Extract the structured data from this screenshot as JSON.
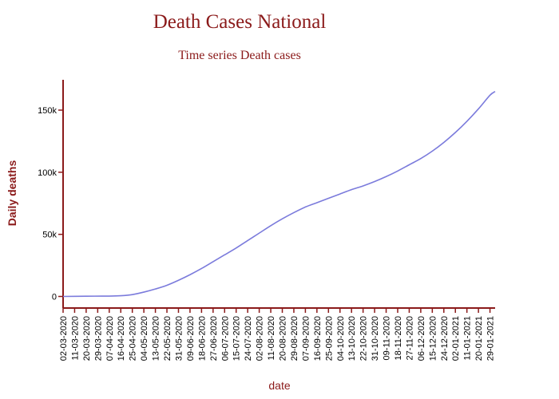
{
  "chart_data": {
    "type": "line",
    "title": "Death Cases National",
    "subtitle": "Time series Death cases",
    "xlabel": "date",
    "ylabel": "Daily deaths",
    "ylim": [
      0,
      170000
    ],
    "yticks": [
      {
        "value": 0,
        "label": "0"
      },
      {
        "value": 50000,
        "label": "50k"
      },
      {
        "value": 100000,
        "label": "100k"
      },
      {
        "value": 150000,
        "label": "150k"
      }
    ],
    "xlim": [
      "2020-03-02",
      "2021-02-02"
    ],
    "xticks": [
      {
        "date": "2020-03-02",
        "label": "02-03-2020"
      },
      {
        "date": "2020-03-11",
        "label": "11-03-2020"
      },
      {
        "date": "2020-03-20",
        "label": "20-03-2020"
      },
      {
        "date": "2020-03-29",
        "label": "29-03-2020"
      },
      {
        "date": "2020-04-07",
        "label": "07-04-2020"
      },
      {
        "date": "2020-04-16",
        "label": "16-04-2020"
      },
      {
        "date": "2020-04-25",
        "label": "25-04-2020"
      },
      {
        "date": "2020-05-04",
        "label": "04-05-2020"
      },
      {
        "date": "2020-05-13",
        "label": "13-05-2020"
      },
      {
        "date": "2020-05-22",
        "label": "22-05-2020"
      },
      {
        "date": "2020-05-31",
        "label": "31-05-2020"
      },
      {
        "date": "2020-06-09",
        "label": "09-06-2020"
      },
      {
        "date": "2020-06-18",
        "label": "18-06-2020"
      },
      {
        "date": "2020-06-27",
        "label": "27-06-2020"
      },
      {
        "date": "2020-07-06",
        "label": "06-07-2020"
      },
      {
        "date": "2020-07-15",
        "label": "15-07-2020"
      },
      {
        "date": "2020-07-24",
        "label": "24-07-2020"
      },
      {
        "date": "2020-08-02",
        "label": "02-08-2020"
      },
      {
        "date": "2020-08-11",
        "label": "11-08-2020"
      },
      {
        "date": "2020-08-20",
        "label": "20-08-2020"
      },
      {
        "date": "2020-08-29",
        "label": "29-08-2020"
      },
      {
        "date": "2020-09-07",
        "label": "07-09-2020"
      },
      {
        "date": "2020-09-16",
        "label": "16-09-2020"
      },
      {
        "date": "2020-09-25",
        "label": "25-09-2020"
      },
      {
        "date": "2020-10-04",
        "label": "04-10-2020"
      },
      {
        "date": "2020-10-13",
        "label": "13-10-2020"
      },
      {
        "date": "2020-10-22",
        "label": "22-10-2020"
      },
      {
        "date": "2020-10-31",
        "label": "31-10-2020"
      },
      {
        "date": "2020-11-09",
        "label": "09-11-2020"
      },
      {
        "date": "2020-11-18",
        "label": "18-11-2020"
      },
      {
        "date": "2020-11-27",
        "label": "27-11-2020"
      },
      {
        "date": "2020-12-06",
        "label": "06-12-2020"
      },
      {
        "date": "2020-12-15",
        "label": "15-12-2020"
      },
      {
        "date": "2020-12-24",
        "label": "24-12-2020"
      },
      {
        "date": "2021-01-02",
        "label": "02-01-2021"
      },
      {
        "date": "2021-01-11",
        "label": "11-01-2021"
      },
      {
        "date": "2021-01-20",
        "label": "20-01-2021"
      },
      {
        "date": "2021-01-29",
        "label": "29-01-2021"
      }
    ],
    "series": [
      {
        "color": "#7b7bdc",
        "points": [
          {
            "x": "2020-03-02",
            "y": 0
          },
          {
            "x": "2020-03-20",
            "y": 200
          },
          {
            "x": "2020-04-07",
            "y": 300
          },
          {
            "x": "2020-04-16",
            "y": 600
          },
          {
            "x": "2020-04-25",
            "y": 1500
          },
          {
            "x": "2020-05-04",
            "y": 3500
          },
          {
            "x": "2020-05-13",
            "y": 6000
          },
          {
            "x": "2020-05-22",
            "y": 9000
          },
          {
            "x": "2020-05-31",
            "y": 13000
          },
          {
            "x": "2020-06-09",
            "y": 17500
          },
          {
            "x": "2020-06-18",
            "y": 22500
          },
          {
            "x": "2020-06-27",
            "y": 28000
          },
          {
            "x": "2020-07-06",
            "y": 33500
          },
          {
            "x": "2020-07-15",
            "y": 39000
          },
          {
            "x": "2020-07-24",
            "y": 45000
          },
          {
            "x": "2020-08-02",
            "y": 51000
          },
          {
            "x": "2020-08-11",
            "y": 57000
          },
          {
            "x": "2020-08-20",
            "y": 62500
          },
          {
            "x": "2020-08-29",
            "y": 67500
          },
          {
            "x": "2020-09-07",
            "y": 72000
          },
          {
            "x": "2020-09-16",
            "y": 75500
          },
          {
            "x": "2020-09-25",
            "y": 79000
          },
          {
            "x": "2020-10-04",
            "y": 82500
          },
          {
            "x": "2020-10-13",
            "y": 86000
          },
          {
            "x": "2020-10-22",
            "y": 89000
          },
          {
            "x": "2020-10-31",
            "y": 92500
          },
          {
            "x": "2020-11-09",
            "y": 96500
          },
          {
            "x": "2020-11-18",
            "y": 101000
          },
          {
            "x": "2020-11-27",
            "y": 106000
          },
          {
            "x": "2020-12-06",
            "y": 111000
          },
          {
            "x": "2020-12-15",
            "y": 117000
          },
          {
            "x": "2020-12-24",
            "y": 124000
          },
          {
            "x": "2021-01-02",
            "y": 132000
          },
          {
            "x": "2021-01-11",
            "y": 141000
          },
          {
            "x": "2021-01-20",
            "y": 151000
          },
          {
            "x": "2021-01-29",
            "y": 162000
          },
          {
            "x": "2021-02-02",
            "y": 165000
          }
        ]
      }
    ],
    "grid": false,
    "colors": {
      "axis": "#8b1a1a",
      "title": "#8b1a1a",
      "line": "#7b7bdc"
    }
  }
}
